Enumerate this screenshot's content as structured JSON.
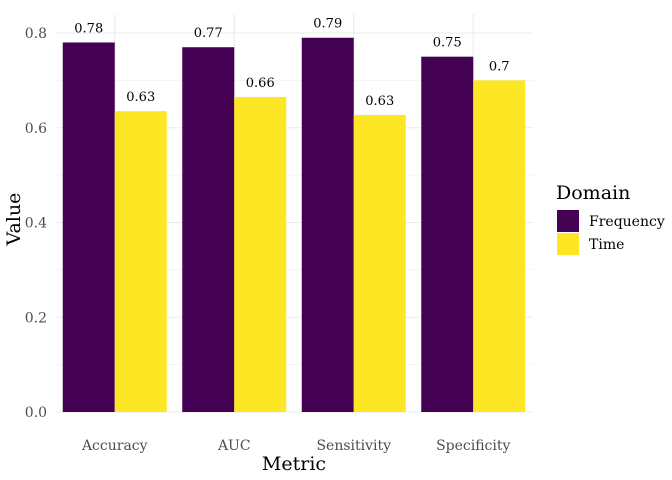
{
  "chart_data": {
    "type": "bar",
    "title": "",
    "xlabel": "Metric",
    "ylabel": "Value",
    "categories": [
      "Accuracy",
      "AUC",
      "Sensitivity",
      "Specificity"
    ],
    "series": [
      {
        "name": "Frequency",
        "color": "#440154",
        "values": [
          0.78,
          0.77,
          0.79,
          0.75
        ],
        "labels": [
          "0.78",
          "0.77",
          "0.79",
          "0.75"
        ]
      },
      {
        "name": "Time",
        "color": "#FDE725",
        "values": [
          0.635,
          0.665,
          0.627,
          0.7
        ],
        "labels": [
          "0.63",
          "0.66",
          "0.63",
          "0.7"
        ]
      }
    ],
    "ylim": [
      0,
      0.8
    ],
    "yticks": [
      0.0,
      0.2,
      0.4,
      0.6,
      0.8
    ],
    "ytick_labels": [
      "0.0",
      "0.2",
      "0.4",
      "0.6",
      "0.8"
    ],
    "grid": true,
    "legend": {
      "title": "Domain",
      "position": "right"
    }
  }
}
